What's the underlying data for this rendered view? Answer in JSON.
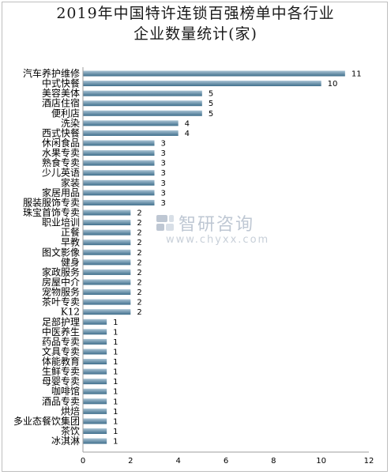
{
  "title_line1": "2019年中国特许连锁百强榜单中各行业",
  "title_line2": "企业数量统计(家)",
  "watermark": {
    "name": "智研咨询",
    "url": "www.chyxx.com"
  },
  "colors": {
    "bar_top": "#a9c3d4",
    "bar_bottom": "#3f6f8c",
    "axis": "#9e9e9e"
  },
  "chart_data": {
    "type": "bar",
    "orientation": "horizontal",
    "title": "2019年中国特许连锁百强榜单中各行业企业数量统计(家)",
    "categories": [
      "汽车养护维修",
      "中式快餐",
      "美容美体",
      "酒店住宿",
      "便利店",
      "洗染",
      "西式快餐",
      "休闲食品",
      "水果专卖",
      "熟食专卖",
      "少儿英语",
      "家装",
      "家居用品",
      "服装服饰专卖",
      "珠宝首饰专卖",
      "职业培训",
      "正餐",
      "早教",
      "图文影像",
      "健身",
      "家政服务",
      "房屋中介",
      "宠物服务",
      "茶叶专卖",
      "K12",
      "足部护理",
      "中医养生",
      "药品专卖",
      "文具专卖",
      "体能教育",
      "生鲜专卖",
      "母婴专卖",
      "咖啡馆",
      "酒品专卖",
      "烘焙",
      "多业态餐饮集团",
      "茶饮",
      "冰淇淋"
    ],
    "values": [
      11,
      10,
      5,
      5,
      5,
      4,
      4,
      3,
      3,
      3,
      3,
      3,
      3,
      3,
      2,
      2,
      2,
      2,
      2,
      2,
      2,
      2,
      2,
      2,
      2,
      1,
      1,
      1,
      1,
      1,
      1,
      1,
      1,
      1,
      1,
      1,
      1,
      1
    ],
    "xlim": [
      0,
      12
    ],
    "xticks": [
      0,
      2,
      4,
      6,
      8,
      10,
      12
    ],
    "grid": false,
    "legend": "none"
  }
}
